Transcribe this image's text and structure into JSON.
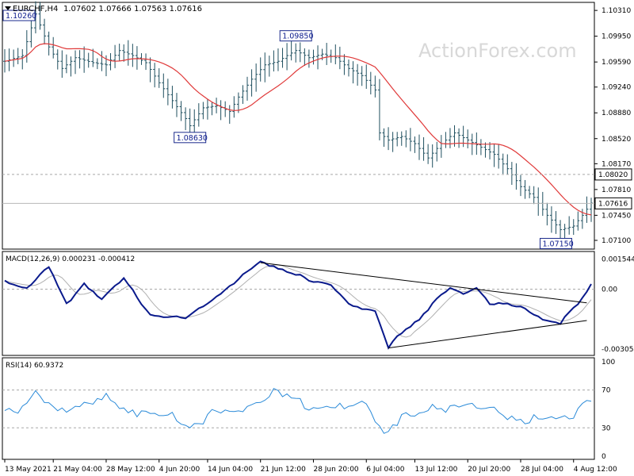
{
  "header": {
    "symbol_label": "EURCHF,H4",
    "ohlc": "1.07602 1.07666 1.07563 1.07616"
  },
  "watermark": "ActionForex.com",
  "colors": {
    "bar": "#1f4f5f",
    "ma": "#e03a3a",
    "macd_line": "#0a1a8c",
    "signal_line": "#b0b0b0",
    "rsi_line": "#2a8ad8",
    "grid_dashed": "#a8a8a8",
    "label_border": "#1a2a8c",
    "label_text": "#0a1a8c"
  },
  "chart_data": [
    {
      "type": "candlestick",
      "title": "EURCHF,H4",
      "ylim": [
        1.07,
        1.104
      ],
      "y_ticks": [
        "1.10310",
        "1.09950",
        "1.09590",
        "1.09240",
        "1.08880",
        "1.08520",
        "1.08170",
        "1.07810",
        "1.07450",
        "1.07100"
      ],
      "level_markers": [
        "1.08020",
        "1.07616"
      ],
      "level_values": [
        1.0802,
        1.07616
      ],
      "annotations": [
        {
          "label": "1.10260",
          "x_index": 7,
          "y": 1.1026
        },
        {
          "label": "1.09850",
          "x_index": 66,
          "y": 1.0985
        },
        {
          "label": "1.08630",
          "x_index": 42,
          "y": 1.0863
        },
        {
          "label": "1.07150",
          "x_index": 125,
          "y": 1.0715
        }
      ],
      "price_anchors": [
        [
          0,
          1.096
        ],
        [
          4,
          1.0968
        ],
        [
          7,
          1.1026
        ],
        [
          10,
          1.098
        ],
        [
          13,
          1.095
        ],
        [
          16,
          1.0965
        ],
        [
          20,
          1.0958
        ],
        [
          23,
          1.0955
        ],
        [
          26,
          1.0975
        ],
        [
          29,
          1.0968
        ],
        [
          32,
          1.0958
        ],
        [
          35,
          1.093
        ],
        [
          38,
          1.0905
        ],
        [
          41,
          1.088
        ],
        [
          42,
          1.087
        ],
        [
          45,
          1.0895
        ],
        [
          48,
          1.0898
        ],
        [
          51,
          1.089
        ],
        [
          53,
          1.091
        ],
        [
          56,
          1.0935
        ],
        [
          59,
          1.0955
        ],
        [
          62,
          1.096
        ],
        [
          64,
          1.0968
        ],
        [
          66,
          1.0975
        ],
        [
          69,
          1.0965
        ],
        [
          72,
          1.097
        ],
        [
          75,
          1.0965
        ],
        [
          78,
          1.095
        ],
        [
          81,
          1.094
        ],
        [
          84,
          1.092
        ],
        [
          85,
          1.086
        ],
        [
          87,
          1.085
        ],
        [
          90,
          1.0855
        ],
        [
          93,
          1.0845
        ],
        [
          96,
          1.0825
        ],
        [
          99,
          1.0845
        ],
        [
          102,
          1.086
        ],
        [
          105,
          1.085
        ],
        [
          108,
          1.084
        ],
        [
          111,
          1.083
        ],
        [
          114,
          1.081
        ],
        [
          117,
          1.0785
        ],
        [
          120,
          1.077
        ],
        [
          123,
          1.0745
        ],
        [
          126,
          1.0725
        ],
        [
          129,
          1.073
        ],
        [
          131,
          1.0745
        ],
        [
          133,
          1.0762
        ]
      ]
    },
    {
      "type": "line",
      "title": "MACD(12,26,9) 0.000231 -0.000412",
      "series": [
        {
          "values_anchors": [
            [
              0,
              0.0004
            ],
            [
              5,
              0.0001
            ],
            [
              10,
              0.0011
            ],
            [
              14,
              -0.0008
            ],
            [
              18,
              0.0003
            ],
            [
              22,
              -0.0005
            ],
            [
              27,
              0.0005
            ],
            [
              33,
              -0.0013
            ],
            [
              41,
              -0.0015
            ],
            [
              47,
              -0.0005
            ],
            [
              53,
              0.0005
            ],
            [
              58,
              0.0014
            ],
            [
              62,
              0.0011
            ],
            [
              66,
              0.0008
            ],
            [
              69,
              0.0004
            ],
            [
              74,
              0.0002
            ],
            [
              78,
              -0.0007
            ],
            [
              81,
              -0.001
            ],
            [
              84,
              -0.0012
            ],
            [
              87,
              -0.003
            ],
            [
              90,
              -0.0022
            ],
            [
              94,
              -0.0015
            ],
            [
              98,
              -0.0005
            ],
            [
              101,
              0.0
            ],
            [
              104,
              -0.0002
            ],
            [
              107,
              0.0001
            ],
            [
              110,
              -0.0007
            ],
            [
              114,
              -0.0008
            ],
            [
              118,
              -0.001
            ],
            [
              122,
              -0.0015
            ],
            [
              126,
              -0.0017
            ],
            [
              130,
              -0.0008
            ],
            [
              133,
              0.0002
            ]
          ]
        }
      ],
      "y_ticks": [
        "0.001544",
        "0.00",
        "-0.003054"
      ],
      "ylim": [
        -0.0033,
        0.0018
      ],
      "trendlines": [
        {
          "from": [
            58,
            0.00135
          ],
          "to": [
            132,
            -0.0007
          ]
        },
        {
          "from": [
            87,
            -0.003
          ],
          "to": [
            132,
            -0.0016
          ]
        }
      ]
    },
    {
      "type": "line",
      "title": "RSI(14) 60.9372",
      "y_ticks": [
        "100",
        "70",
        "30",
        "0"
      ],
      "levels": [
        70,
        30
      ],
      "ylim": [
        0,
        100
      ],
      "values_anchors": [
        [
          0,
          50
        ],
        [
          3,
          42
        ],
        [
          7,
          66
        ],
        [
          10,
          58
        ],
        [
          13,
          52
        ],
        [
          16,
          50
        ],
        [
          20,
          55
        ],
        [
          23,
          62
        ],
        [
          27,
          52
        ],
        [
          31,
          46
        ],
        [
          34,
          40
        ],
        [
          38,
          44
        ],
        [
          42,
          35
        ],
        [
          45,
          40
        ],
        [
          48,
          46
        ],
        [
          51,
          42
        ],
        [
          54,
          52
        ],
        [
          57,
          58
        ],
        [
          60,
          68
        ],
        [
          64,
          60
        ],
        [
          67,
          58
        ],
        [
          70,
          52
        ],
        [
          73,
          56
        ],
        [
          77,
          50
        ],
        [
          80,
          55
        ],
        [
          83,
          48
        ],
        [
          86,
          28
        ],
        [
          88,
          34
        ],
        [
          91,
          42
        ],
        [
          94,
          40
        ],
        [
          97,
          50
        ],
        [
          100,
          52
        ],
        [
          103,
          56
        ],
        [
          106,
          50
        ],
        [
          110,
          48
        ],
        [
          114,
          44
        ],
        [
          118,
          40
        ],
        [
          122,
          36
        ],
        [
          126,
          38
        ],
        [
          129,
          44
        ],
        [
          131,
          60
        ],
        [
          133,
          61
        ]
      ]
    }
  ],
  "x_axis": {
    "labels": [
      "13 May 2021",
      "21 May 04:00",
      "28 May 12:00",
      "4 Jun 20:00",
      "14 Jun 04:00",
      "21 Jun 12:00",
      "28 Jun 20:00",
      "6 Jul 04:00",
      "13 Jul 12:00",
      "20 Jul 20:00",
      "28 Jul 04:00",
      "4 Aug 12:00"
    ],
    "label_index": [
      0,
      11,
      23,
      35,
      46,
      58,
      70,
      82,
      93,
      105,
      117,
      129
    ],
    "n_bars": 134
  }
}
